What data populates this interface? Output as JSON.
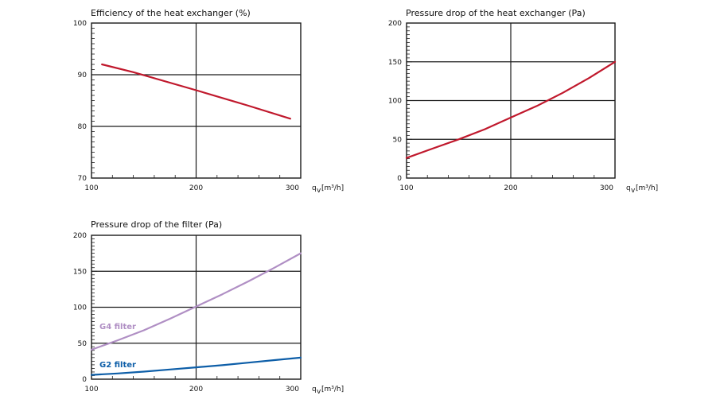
{
  "colors": {
    "red_series": "#c0182c",
    "g4_series": "#b08fc4",
    "g2_series": "#0d5ea8",
    "grid": "#1a1a1a"
  },
  "chart_data": [
    {
      "id": "efficiency",
      "type": "line",
      "title": "Efficiency of the heat exchanger (%)",
      "xlabel": "q",
      "xlabel_sub": "v",
      "xlabel_unit": "[m³/h]",
      "xlim": [
        100,
        300
      ],
      "ylim": [
        70,
        100
      ],
      "xticks": [
        100,
        200,
        300
      ],
      "yticks": [
        70,
        80,
        90,
        100
      ],
      "series": [
        {
          "name": "Efficiency",
          "color": "#c0182c",
          "x": [
            110,
            140,
            200,
            250,
            290
          ],
          "y": [
            92,
            90.5,
            87,
            84,
            81.5
          ]
        }
      ]
    },
    {
      "id": "pressure_hx",
      "type": "line",
      "title": "Pressure drop of the heat exchanger (Pa)",
      "xlabel": "q",
      "xlabel_sub": "v",
      "xlabel_unit": "[m³/h]",
      "xlim": [
        100,
        300
      ],
      "ylim": [
        0,
        200
      ],
      "xticks": [
        100,
        200,
        300
      ],
      "yticks": [
        0,
        50,
        100,
        150,
        200
      ],
      "series": [
        {
          "name": "Pressure drop",
          "color": "#c0182c",
          "x": [
            100,
            125,
            150,
            175,
            200,
            225,
            250,
            275,
            300
          ],
          "y": [
            26,
            38,
            50,
            63,
            78,
            93,
            110,
            129,
            150
          ]
        }
      ]
    },
    {
      "id": "pressure_filter",
      "type": "line",
      "title": "Pressure drop of the filter (Pa)",
      "xlabel": "q",
      "xlabel_sub": "v",
      "xlabel_unit": "[m³/h]",
      "xlim": [
        100,
        300
      ],
      "ylim": [
        0,
        200
      ],
      "xticks": [
        100,
        200,
        300
      ],
      "yticks": [
        0,
        50,
        100,
        150,
        200
      ],
      "series": [
        {
          "name": "G4 filter",
          "color": "#b08fc4",
          "x": [
            100,
            125,
            150,
            175,
            200,
            225,
            250,
            275,
            300
          ],
          "y": [
            41,
            54,
            68,
            84,
            101,
            118,
            136,
            155,
            175
          ]
        },
        {
          "name": "G2 filter",
          "color": "#0d5ea8",
          "x": [
            100,
            125,
            150,
            175,
            200,
            225,
            250,
            275,
            300
          ],
          "y": [
            6,
            8,
            10.5,
            13.5,
            16.5,
            19.5,
            23,
            26.5,
            30
          ]
        }
      ]
    }
  ]
}
